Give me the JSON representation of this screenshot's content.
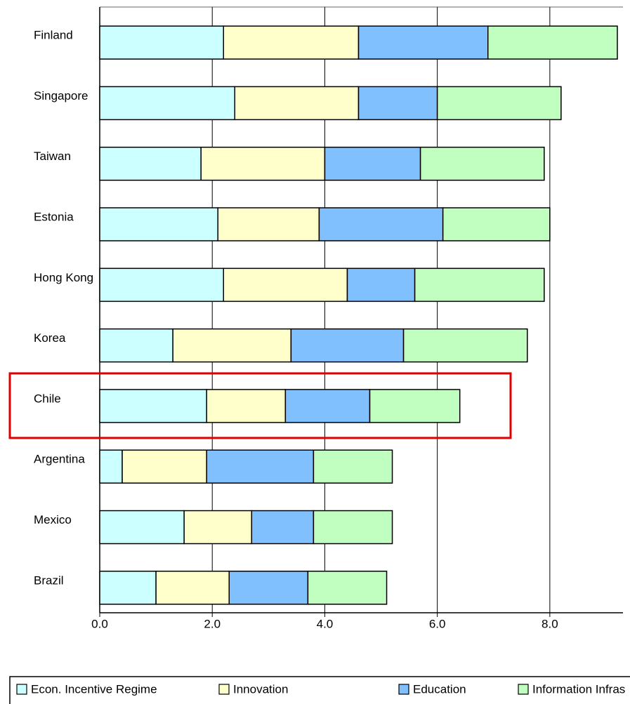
{
  "chart_data": {
    "type": "stacked-bar-horizontal",
    "categories": [
      "Finland",
      "Singapore",
      "Taiwan",
      "Estonia",
      "Hong Kong",
      "Korea",
      "Chile",
      "Argentina",
      "Mexico",
      "Brazil"
    ],
    "series": [
      {
        "name": "Econ. Incentive Regime",
        "color": "#ccffff",
        "values": [
          2.2,
          2.4,
          1.8,
          2.1,
          2.2,
          1.3,
          1.9,
          0.4,
          1.5,
          1.0
        ]
      },
      {
        "name": "Innovation",
        "color": "#ffffcc",
        "values": [
          2.4,
          2.2,
          2.2,
          1.8,
          2.2,
          2.1,
          1.4,
          1.5,
          1.2,
          1.3
        ]
      },
      {
        "name": "Education",
        "color": "#80c0ff",
        "values": [
          2.3,
          1.4,
          1.7,
          2.2,
          1.2,
          2.0,
          1.5,
          1.9,
          1.1,
          1.4
        ]
      },
      {
        "name": "Information Infras",
        "color": "#c0ffc0",
        "values": [
          2.3,
          2.2,
          2.2,
          1.9,
          2.3,
          2.2,
          1.6,
          1.4,
          1.4,
          1.4
        ]
      }
    ],
    "xlim": [
      0,
      9.3
    ],
    "xticks": [
      {
        "value": 0,
        "label": "0.0"
      },
      {
        "value": 2,
        "label": "2.0"
      },
      {
        "value": 4,
        "label": "4.0"
      },
      {
        "value": 6,
        "label": "6.0"
      },
      {
        "value": 8,
        "label": "8.0"
      }
    ],
    "grid": true,
    "legend": "bottom"
  }
}
